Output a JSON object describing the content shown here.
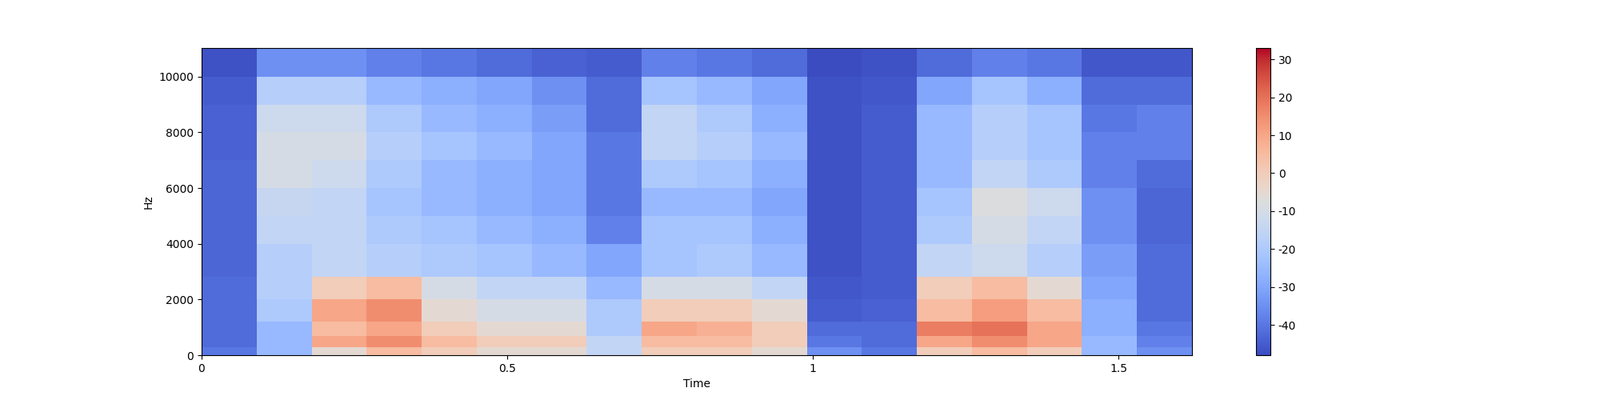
{
  "chart_data": {
    "type": "heatmap",
    "x_label": "Time",
    "y_label": "Hz",
    "x": [
      0,
      0.09,
      0.18,
      0.27,
      0.36,
      0.45,
      0.54,
      0.63,
      0.72,
      0.81,
      0.9,
      0.99,
      1.08,
      1.17,
      1.26,
      1.35,
      1.44,
      1.53,
      1.62
    ],
    "y": [
      0,
      300,
      700,
      1200,
      2000,
      2800,
      4000,
      5000,
      6000,
      7000,
      8000,
      9000,
      10000,
      11025
    ],
    "cells": [
      [
        -40,
        -25,
        -5,
        5,
        0,
        -5,
        -5,
        -15,
        0,
        0,
        -5,
        -35,
        -40,
        0,
        5,
        0,
        -25,
        -35
      ],
      [
        -42,
        -25,
        10,
        15,
        5,
        0,
        0,
        -15,
        5,
        5,
        0,
        -40,
        -42,
        10,
        15,
        10,
        -25,
        -38
      ],
      [
        -42,
        -25,
        5,
        10,
        0,
        -5,
        -5,
        -20,
        10,
        8,
        0,
        -42,
        -42,
        18,
        20,
        10,
        -28,
        -40
      ],
      [
        -42,
        -20,
        10,
        15,
        -5,
        -10,
        -10,
        -20,
        0,
        0,
        -5,
        -45,
        -44,
        5,
        12,
        5,
        -28,
        -42
      ],
      [
        -42,
        -18,
        0,
        5,
        -10,
        -15,
        -15,
        -25,
        -10,
        -10,
        -15,
        -46,
        -45,
        0,
        5,
        -5,
        -30,
        -42
      ],
      [
        -43,
        -18,
        -15,
        -18,
        -20,
        -22,
        -25,
        -30,
        -22,
        -20,
        -25,
        -47,
        -45,
        -15,
        -12,
        -18,
        -32,
        -42
      ],
      [
        -43,
        -15,
        -15,
        -20,
        -22,
        -25,
        -28,
        -38,
        -22,
        -22,
        -28,
        -47,
        -45,
        -20,
        -10,
        -15,
        -35,
        -43
      ],
      [
        -43,
        -14,
        -15,
        -22,
        -25,
        -28,
        -30,
        -40,
        -25,
        -25,
        -30,
        -47,
        -45,
        -22,
        -8,
        -12,
        -35,
        -43
      ],
      [
        -43,
        -10,
        -12,
        -20,
        -25,
        -28,
        -30,
        -40,
        -20,
        -22,
        -28,
        -47,
        -45,
        -25,
        -15,
        -20,
        -38,
        -42
      ],
      [
        -44,
        -10,
        -10,
        -18,
        -22,
        -25,
        -30,
        -40,
        -15,
        -18,
        -25,
        -47,
        -45,
        -25,
        -18,
        -22,
        -38,
        -38
      ],
      [
        -44,
        -12,
        -12,
        -20,
        -25,
        -28,
        -32,
        -42,
        -15,
        -20,
        -28,
        -47,
        -45,
        -25,
        -18,
        -22,
        -40,
        -38
      ],
      [
        -45,
        -18,
        -18,
        -25,
        -28,
        -30,
        -35,
        -42,
        -22,
        -25,
        -30,
        -47,
        -46,
        -30,
        -22,
        -28,
        -42,
        -42
      ],
      [
        -47,
        -35,
        -35,
        -38,
        -40,
        -42,
        -44,
        -45,
        -38,
        -40,
        -42,
        -48,
        -47,
        -42,
        -38,
        -40,
        -46,
        -46
      ]
    ],
    "color": "coolwarm",
    "xlim": [
      0,
      1.62
    ],
    "xticks": [
      0,
      0.5,
      1,
      1.5
    ],
    "ylim": [
      0,
      11025
    ],
    "yticks": [
      0,
      2000,
      4000,
      6000,
      8000,
      10000
    ],
    "colorbar_range": [
      -48,
      33
    ],
    "colorbar_ticks": [
      -40,
      -30,
      -20,
      -10,
      0,
      10,
      20,
      30
    ]
  }
}
